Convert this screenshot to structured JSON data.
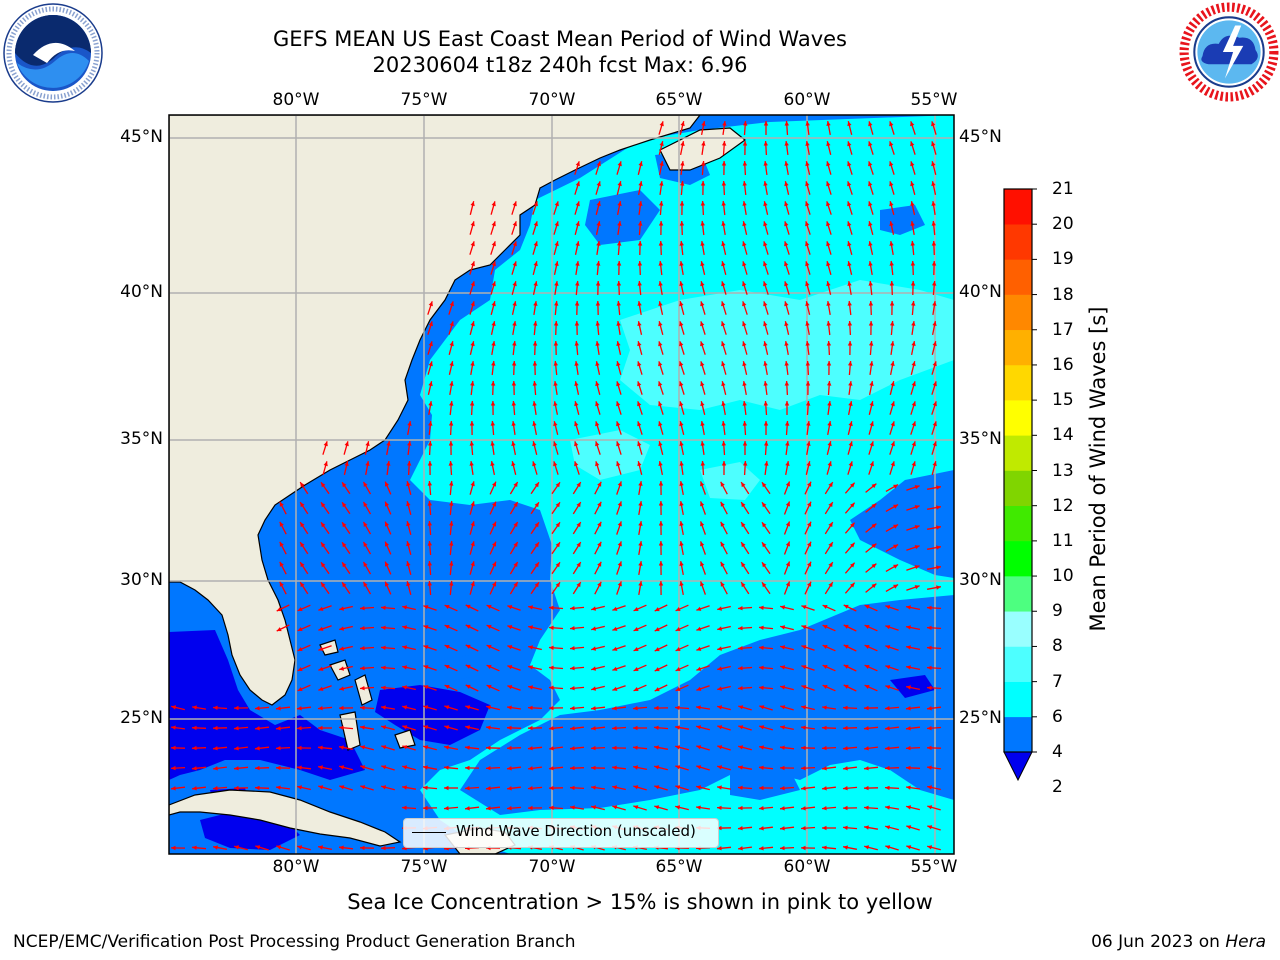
{
  "title": {
    "line1": "GEFS MEAN US East Coast Mean Period of Wind Waves",
    "line2": "20230604 t18z 240h fcst   Max: 6.96"
  },
  "map": {
    "lon_labels": [
      "80°W",
      "75°W",
      "70°W",
      "65°W",
      "60°W",
      "55°W"
    ],
    "lat_labels": [
      "45°N",
      "40°N",
      "35°N",
      "30°N",
      "25°N"
    ],
    "lon_values": [
      -80,
      -75,
      -70,
      -65,
      -60,
      -55
    ],
    "lat_values": [
      45,
      40,
      35,
      30,
      25
    ],
    "extent": {
      "lon": [
        -85,
        -54.3
      ],
      "lat": [
        20.4,
        46.2
      ]
    },
    "land_color": "#efedde",
    "vector_color": "#ff0000",
    "gridline_color": "#b0b0b0",
    "legend_label": "Wind Wave Direction (unscaled)"
  },
  "colorbar": {
    "label": "Mean Period of Wind Waves [s]",
    "tick_labels": [
      "21",
      "20",
      "19",
      "18",
      "17",
      "16",
      "15",
      "14",
      "13",
      "12",
      "11",
      "10",
      "9",
      "8",
      "7",
      "6",
      "4",
      "2"
    ],
    "levels": [
      2,
      4,
      6,
      7,
      8,
      9,
      10,
      11,
      12,
      13,
      14,
      15,
      16,
      17,
      18,
      19,
      20,
      21
    ],
    "colors": [
      "#0077ff",
      "#00ffff",
      "#4dffff",
      "#99ffff",
      "#4dff80",
      "#00ff00",
      "#40ea00",
      "#80d500",
      "#c0ea00",
      "#ffff00",
      "#ffd800",
      "#ffb000",
      "#ff8800",
      "#ff6000",
      "#ff3800",
      "#ff1000"
    ],
    "under_color": "#0000ee",
    "extend": "min"
  },
  "caption": "Sea Ice Concentration > 15% is shown in pink to yellow",
  "footer": {
    "left": "NCEP/EMC/Verification Post Processing Product Generation Branch",
    "right_prefix": "06 Jun 2023 on ",
    "right_host": "Hera"
  }
}
